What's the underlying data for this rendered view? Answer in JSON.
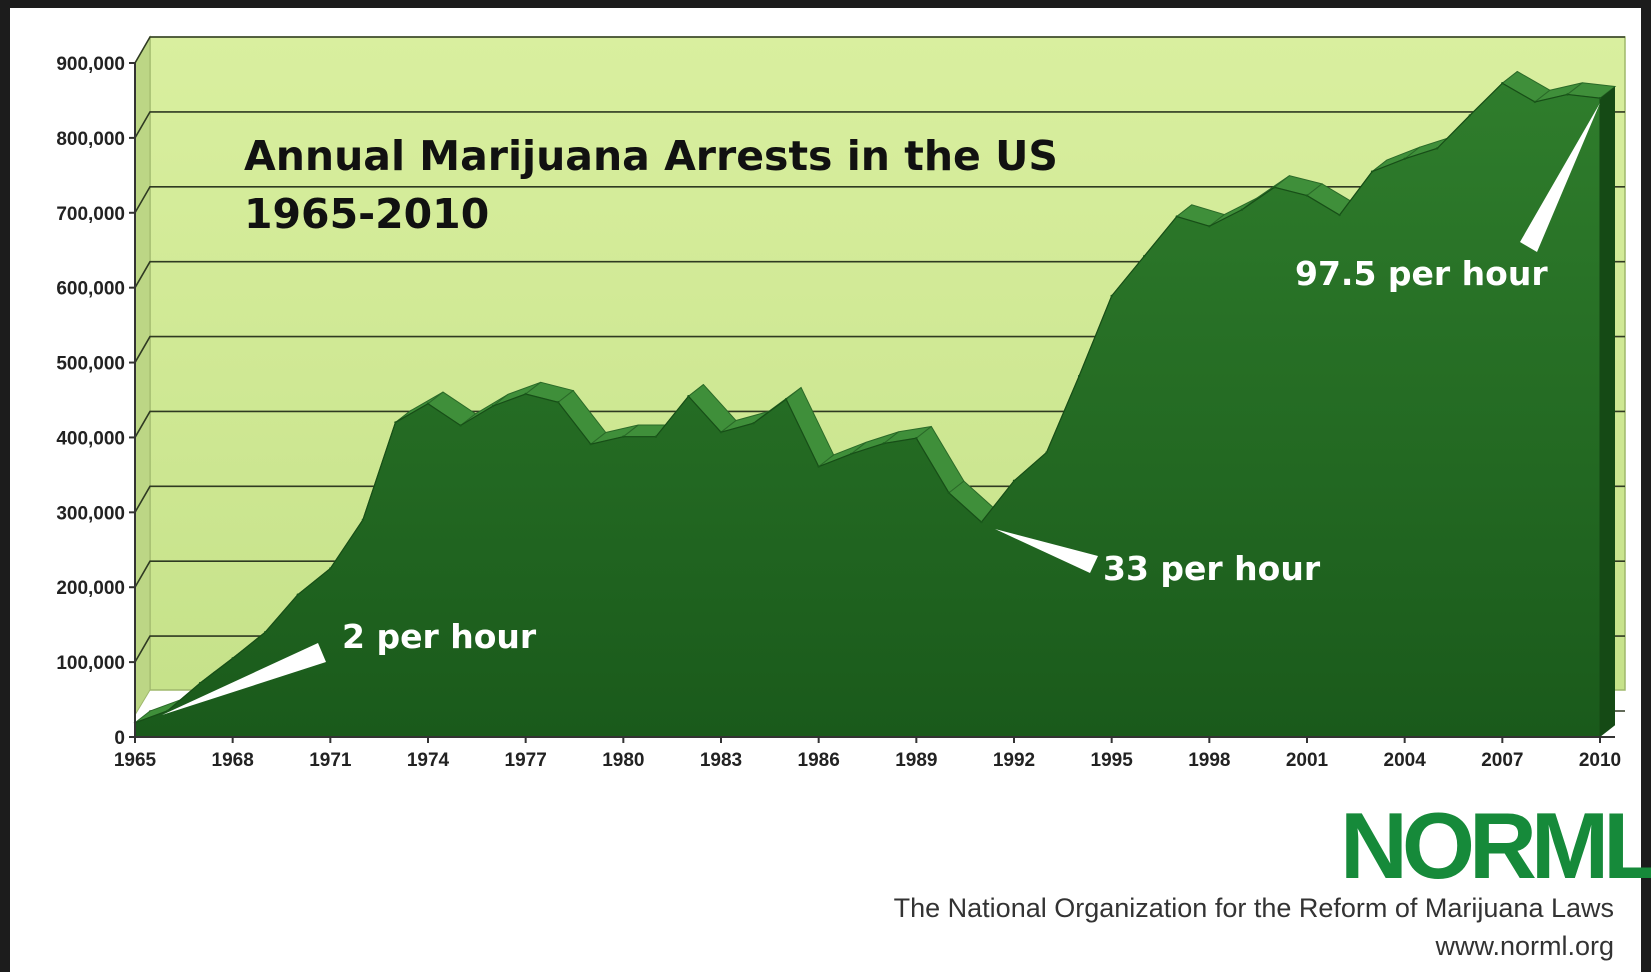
{
  "chart_data": {
    "type": "area",
    "title_line1": "Annual Marijuana Arrests in the US",
    "title_line2": "1965-2010",
    "xlabel": "",
    "ylabel": "",
    "ylim": [
      0,
      900000
    ],
    "xlim": [
      1965,
      2010
    ],
    "y_ticks": [
      "0",
      "100,000",
      "200,000",
      "300,000",
      "400,000",
      "500,000",
      "600,000",
      "700,000",
      "800,000",
      "900,000"
    ],
    "x_ticks": [
      "1965",
      "1968",
      "1971",
      "1974",
      "1977",
      "1980",
      "1983",
      "1986",
      "1989",
      "1992",
      "1995",
      "1998",
      "2001",
      "2004",
      "2007",
      "2010"
    ],
    "grid": true,
    "x": [
      1965,
      1966,
      1967,
      1968,
      1969,
      1970,
      1971,
      1972,
      1973,
      1974,
      1975,
      1976,
      1977,
      1978,
      1979,
      1980,
      1981,
      1982,
      1983,
      1984,
      1985,
      1986,
      1987,
      1988,
      1989,
      1990,
      1991,
      1992,
      1993,
      1994,
      1995,
      1996,
      1997,
      1998,
      1999,
      2000,
      2001,
      2002,
      2003,
      2004,
      2005,
      2006,
      2007,
      2008,
      2009,
      2010
    ],
    "values": [
      19000,
      35000,
      72000,
      105000,
      140000,
      190000,
      225000,
      290000,
      420000,
      445000,
      416000,
      442000,
      458000,
      447000,
      391000,
      401000,
      401000,
      455000,
      407000,
      419000,
      451000,
      361000,
      378000,
      392000,
      399000,
      326000,
      287000,
      342000,
      380000,
      482000,
      589000,
      642000,
      695000,
      682000,
      704000,
      734000,
      723000,
      697000,
      755000,
      772000,
      786000,
      830000,
      873000,
      848000,
      858000,
      853000
    ],
    "annotations": [
      {
        "text": "2 per hour",
        "year": 1965
      },
      {
        "text": "33 per hour",
        "year": 1991
      },
      {
        "text": "97.5 per hour",
        "year": 2010
      }
    ],
    "colors": {
      "plot_background": "#d4eb9e",
      "area_fill": "#1f6b1e",
      "area_highlight": "#3f8f3a",
      "grid_line": "#2f3a22",
      "logo": "#168a3a"
    }
  },
  "branding": {
    "logo_text": "NORML",
    "org_name": "The National Organization for the Reform of Marijuana Laws",
    "website": "www.norml.org"
  }
}
